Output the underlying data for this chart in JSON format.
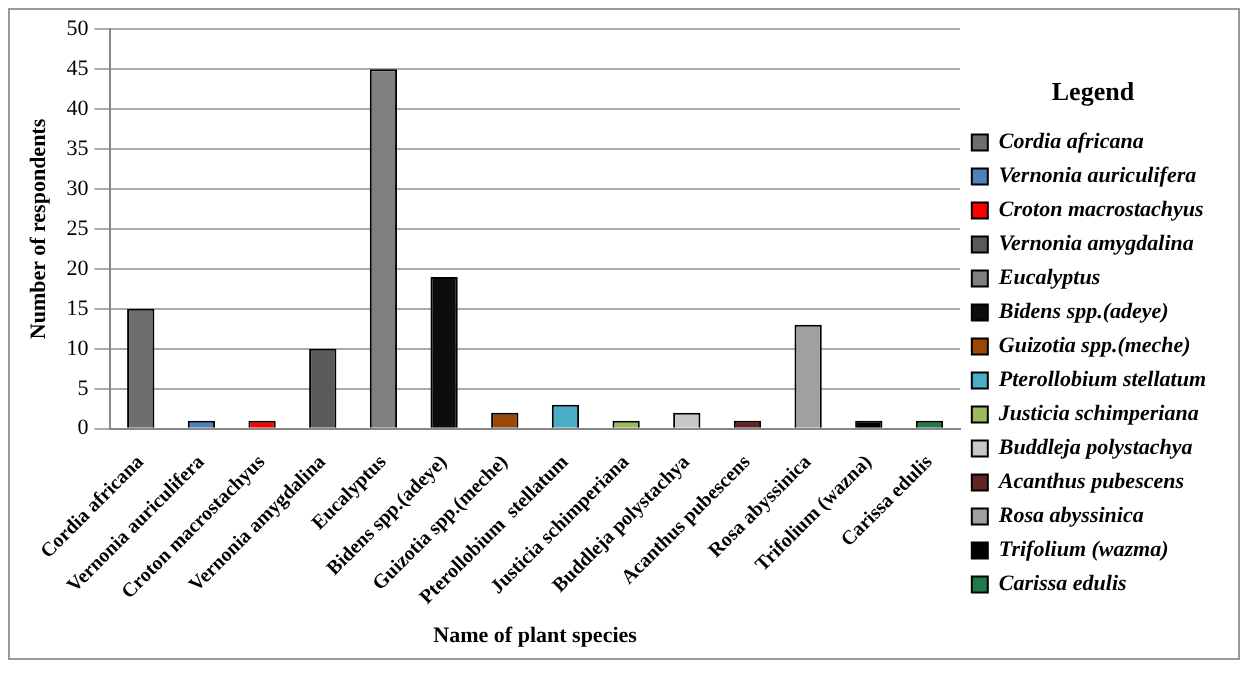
{
  "chart_data": {
    "type": "bar",
    "xlabel": "Name of plant species",
    "ylabel": "Number of respondents",
    "legend_title": "Legend",
    "categories": [
      "Cordia africana",
      "Vernonia auriculifera",
      "Croton macrostachyus",
      "Vernonia amygdalina",
      "Eucalyptus",
      "Bidens spp.(adeye)",
      "Guizotia spp.(meche)",
      "Pterollobium  stellatum",
      "Justicia schimperiana",
      "Buddleja polystachya",
      "Acanthus pubescens",
      "Rosa abyssinica",
      "Trifolium (wazna)",
      "Carissa edulis"
    ],
    "series": [
      {
        "name": "Cordia africana",
        "color": "#6e6e6e",
        "values": [
          15,
          null,
          null,
          null,
          null,
          null,
          null,
          null,
          null,
          null,
          null,
          null,
          null,
          null
        ]
      },
      {
        "name": "Vernonia auriculifera",
        "color": "#4f81bd",
        "values": [
          null,
          1,
          null,
          null,
          null,
          null,
          null,
          null,
          null,
          null,
          null,
          null,
          null,
          null
        ]
      },
      {
        "name": "Croton macrostachyus",
        "color": "#ff0000",
        "values": [
          null,
          null,
          1,
          null,
          null,
          null,
          null,
          null,
          null,
          null,
          null,
          null,
          null,
          null
        ]
      },
      {
        "name": "Vernonia amygdalina",
        "color": "#5a5a5a",
        "values": [
          null,
          null,
          null,
          10,
          null,
          null,
          null,
          null,
          null,
          null,
          null,
          null,
          null,
          null
        ]
      },
      {
        "name": "Eucalyptus",
        "color": "#7f7f7f",
        "values": [
          null,
          null,
          null,
          null,
          45,
          null,
          null,
          null,
          null,
          null,
          null,
          null,
          null,
          null
        ]
      },
      {
        "name": "Bidens spp.(adeye)",
        "color": "#0d0d0d",
        "values": [
          null,
          null,
          null,
          null,
          null,
          19,
          null,
          null,
          null,
          null,
          null,
          null,
          null,
          null
        ]
      },
      {
        "name": "Guizotia spp.(meche)",
        "color": "#984807",
        "values": [
          null,
          null,
          null,
          null,
          null,
          null,
          2,
          null,
          null,
          null,
          null,
          null,
          null,
          null
        ]
      },
      {
        "name": "Pterollobium stellatum",
        "color": "#4bacc6",
        "values": [
          null,
          null,
          null,
          null,
          null,
          null,
          null,
          3,
          null,
          null,
          null,
          null,
          null,
          null
        ]
      },
      {
        "name": "Justicia schimperiana",
        "color": "#9bbb59",
        "values": [
          null,
          null,
          null,
          null,
          null,
          null,
          null,
          null,
          1,
          null,
          null,
          null,
          null,
          null
        ]
      },
      {
        "name": "Buddleja polystachya",
        "color": "#c8c8c8",
        "values": [
          null,
          null,
          null,
          null,
          null,
          null,
          null,
          null,
          null,
          2,
          null,
          null,
          null,
          null
        ]
      },
      {
        "name": "Acanthus pubescens",
        "color": "#632523",
        "values": [
          null,
          null,
          null,
          null,
          null,
          null,
          null,
          null,
          null,
          null,
          1,
          null,
          null,
          null
        ]
      },
      {
        "name": "Rosa abyssinica",
        "color": "#a0a0a0",
        "values": [
          null,
          null,
          null,
          null,
          null,
          null,
          null,
          null,
          null,
          null,
          null,
          13,
          null,
          null
        ]
      },
      {
        "name": "Trifolium (wazma)",
        "color": "#000000",
        "values": [
          null,
          null,
          null,
          null,
          null,
          null,
          null,
          null,
          null,
          null,
          null,
          null,
          1,
          null
        ]
      },
      {
        "name": "Carissa edulis",
        "color": "#1e7b4a",
        "values": [
          null,
          null,
          null,
          null,
          null,
          null,
          null,
          null,
          null,
          null,
          null,
          null,
          null,
          1
        ]
      }
    ],
    "ylim": [
      0,
      50
    ],
    "yticks": [
      0,
      5,
      10,
      15,
      20,
      25,
      30,
      35,
      40,
      45,
      50
    ],
    "grid": "y",
    "legend": "right"
  }
}
